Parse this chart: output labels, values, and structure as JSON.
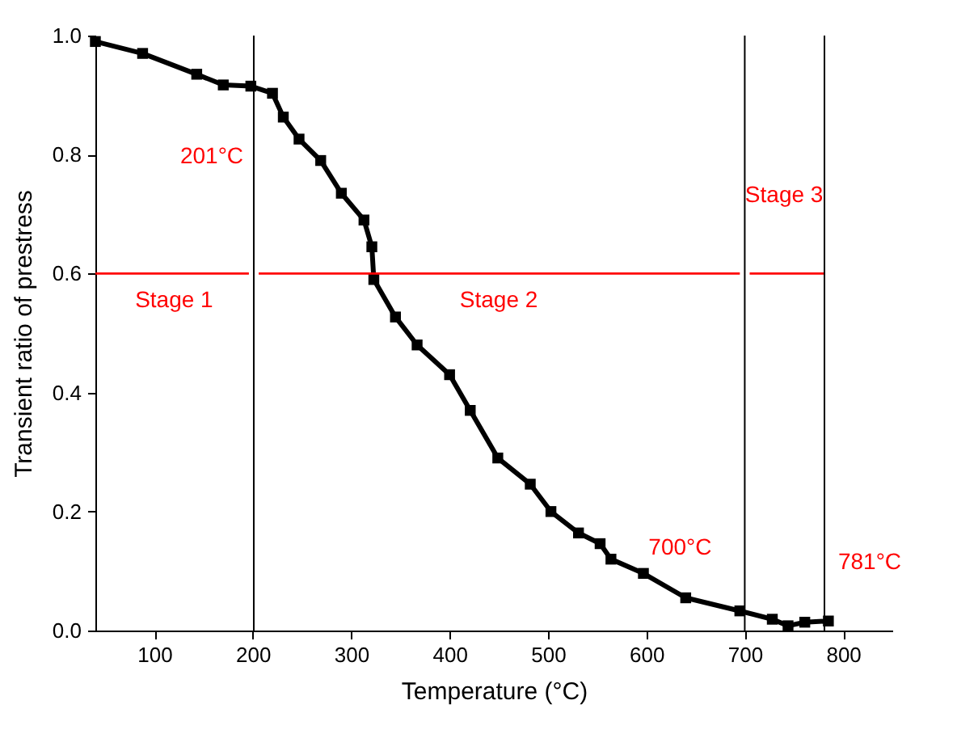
{
  "chart_data": {
    "type": "line",
    "xlabel": "Temperature (°C)",
    "ylabel": "Transient ratio of prestress",
    "xlim": [
      40,
      850
    ],
    "xticks": [
      100,
      200,
      300,
      400,
      500,
      600,
      700,
      800
    ],
    "ylim": [
      0,
      1.0
    ],
    "yticks": [
      {
        "value": 0,
        "label": "0.0"
      },
      0.2,
      0.4,
      0.6,
      0.8,
      {
        "value": 1,
        "label": "1.0"
      }
    ],
    "marker": "square",
    "line_style": "solid",
    "series": [
      {
        "color": "#000000",
        "x": [
          40,
          88,
          143,
          170,
          198,
          220,
          231,
          247,
          269,
          290,
          313,
          321,
          323,
          345,
          367,
          400,
          421,
          449,
          482,
          503,
          531,
          553,
          564,
          597,
          640,
          695,
          728,
          744,
          761,
          785
        ],
        "values": [
          0.99,
          0.97,
          0.935,
          0.917,
          0.915,
          0.903,
          0.863,
          0.826,
          0.79,
          0.735,
          0.69,
          0.645,
          0.59,
          0.527,
          0.48,
          0.43,
          0.37,
          0.29,
          0.246,
          0.2,
          0.164,
          0.146,
          0.12,
          0.096,
          0.055,
          0.033,
          0.019,
          0.008,
          0.014,
          0.016
        ]
      },
      {
        "color": "#ff0000",
        "marker": "none",
        "x": [
          40,
          196
        ],
        "values": [
          0.6,
          0.6
        ]
      },
      {
        "color": "#ff0000",
        "marker": "none",
        "x": [
          206,
          695
        ],
        "values": [
          0.6,
          0.6
        ]
      },
      {
        "color": "#ff0000",
        "marker": "none",
        "x": [
          705,
          781
        ],
        "values": [
          0.6,
          0.6
        ]
      }
    ],
    "ref_lines": [
      {
        "axis": "x",
        "value": 201,
        "color": "#000000"
      },
      {
        "axis": "x",
        "value": 700,
        "color": "#000000"
      },
      {
        "axis": "x",
        "value": 781,
        "color": "#000000"
      }
    ],
    "annotations": [
      {
        "text": "201°C",
        "x": 201,
        "y": 0.91
      },
      {
        "text": "700°C",
        "x": 700,
        "y": 0.03
      },
      {
        "text": "781°C",
        "x": 781,
        "y": 0.016
      },
      {
        "text": "Stage 1",
        "x": 120,
        "y": 0.6
      },
      {
        "text": "Stage 2",
        "x": 450,
        "y": 0.6
      },
      {
        "text": "Stage 3",
        "x": 740,
        "y": 0.6
      }
    ]
  }
}
